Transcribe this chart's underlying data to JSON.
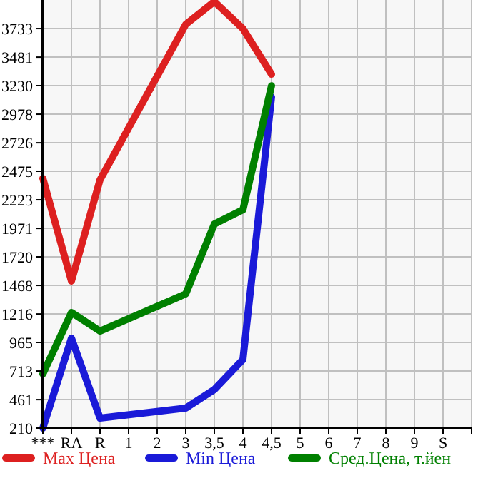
{
  "chart_data": {
    "type": "line",
    "categories": [
      "***",
      "RA",
      "R",
      "1",
      "2",
      "3",
      "3,5",
      "4",
      "4,5",
      "5",
      "6",
      "7",
      "8",
      "9",
      "S"
    ],
    "series": [
      {
        "name": "Max Цена",
        "color": "#dd2020",
        "values": [
          2412,
          1506,
          2399,
          null,
          null,
          3770,
          3971,
          3732,
          3330,
          null,
          null,
          null,
          null,
          null,
          null
        ]
      },
      {
        "name": "Min Цена",
        "color": "#1a1ad8",
        "values": [
          210,
          1003,
          298,
          null,
          null,
          386,
          550,
          814,
          3129,
          null,
          null,
          null,
          null,
          null,
          null
        ]
      },
      {
        "name": "Сред.Цена, т.йен",
        "color": "#008000",
        "values": [
          688,
          1229,
          1065,
          null,
          null,
          1393,
          2009,
          2135,
          3229,
          null,
          null,
          null,
          null,
          null,
          null
        ]
      }
    ],
    "ylim": [
      210,
      3985
    ],
    "yticks": [
      210,
      461,
      713,
      965,
      1216,
      1468,
      1720,
      1971,
      2223,
      2475,
      2726,
      2978,
      3230,
      3481,
      3733
    ],
    "grid": true,
    "legend": "bottom"
  }
}
